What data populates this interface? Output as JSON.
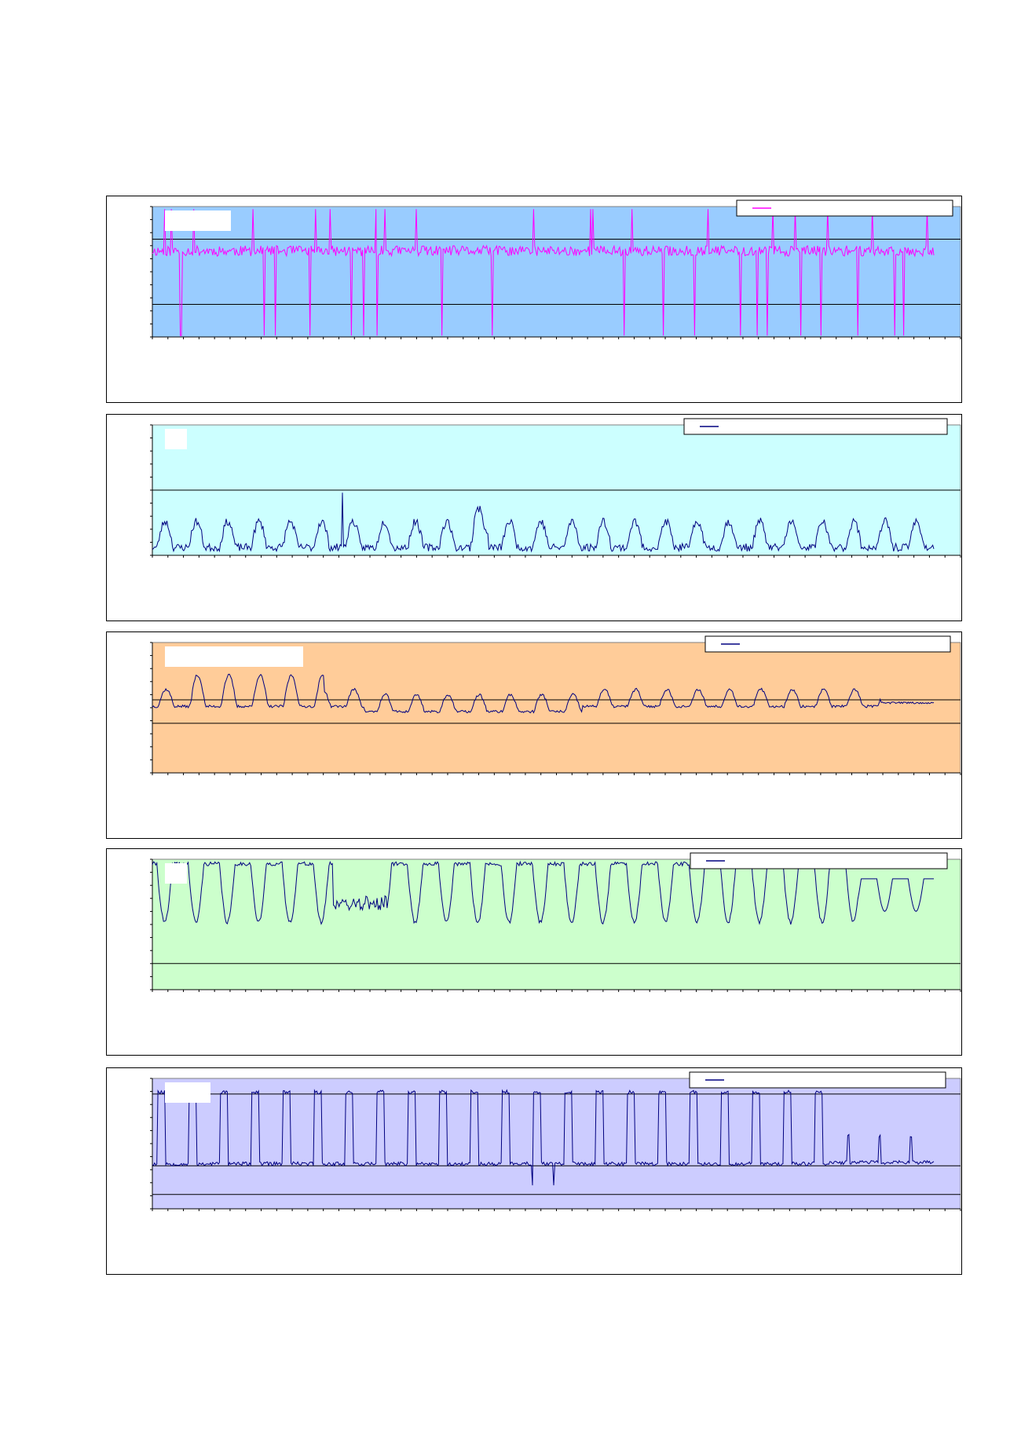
{
  "chart_data": [
    {
      "type": "line",
      "title": "",
      "xlabel": "",
      "ylabel": "",
      "plot_bg": "#99CCFF",
      "series_color": "#FF00FF",
      "ylim": [
        0,
        100
      ],
      "grid_y": [
        75,
        25
      ],
      "x_ticks": 52,
      "legend": {
        "position": "top-right",
        "text": ""
      },
      "title_box": true,
      "series": [
        {
          "pattern": "pink",
          "n": 700,
          "seed": 11
        }
      ]
    },
    {
      "type": "line",
      "title": "",
      "xlabel": "",
      "ylabel": "",
      "plot_bg": "#CCFFFF",
      "series_color": "#000080",
      "ylim": [
        0,
        100
      ],
      "grid_y": [
        50
      ],
      "x_ticks": 52,
      "legend": {
        "position": "top-right",
        "text": ""
      },
      "title_box": true,
      "series": [
        {
          "pattern": "low",
          "n": 700,
          "seed": 23
        }
      ]
    },
    {
      "type": "line",
      "title": "",
      "xlabel": "",
      "ylabel": "",
      "plot_bg": "#FFCC99",
      "series_color": "#000080",
      "ylim": [
        0,
        100
      ],
      "grid_y": [
        56,
        38
      ],
      "x_ticks": 52,
      "legend": {
        "position": "top-right",
        "text": ""
      },
      "title_box": true,
      "series": [
        {
          "pattern": "mid",
          "n": 700,
          "seed": 37
        }
      ]
    },
    {
      "type": "line",
      "title": "",
      "xlabel": "",
      "ylabel": "",
      "plot_bg": "#CCFFCC",
      "series_color": "#000080",
      "ylim": [
        0,
        100
      ],
      "grid_y": [
        20
      ],
      "x_ticks": 52,
      "legend": {
        "position": "top-right",
        "text": ""
      },
      "title_box": true,
      "series": [
        {
          "pattern": "high",
          "n": 700,
          "seed": 41
        }
      ]
    },
    {
      "type": "line",
      "title": "",
      "xlabel": "",
      "ylabel": "",
      "plot_bg": "#CCCCFF",
      "series_color": "#000080",
      "ylim": [
        0,
        100
      ],
      "grid_y": [
        88,
        33,
        11
      ],
      "x_ticks": 52,
      "legend": {
        "position": "top-right",
        "text": ""
      },
      "title_box": true,
      "series": [
        {
          "pattern": "spike",
          "n": 700,
          "seed": 53
        }
      ]
    }
  ]
}
